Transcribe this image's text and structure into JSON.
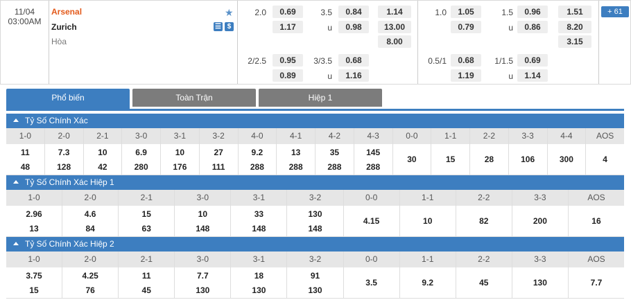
{
  "match": {
    "date": "11/04",
    "time": "03:00AM",
    "home": "Arsenal",
    "away": "Zurich",
    "draw": "Hòa",
    "more_count": "61",
    "odds": {
      "ft_ah_line1": "2.0",
      "ft_ah_h1": "0.69",
      "ft_ah_a1": "1.17",
      "ft_ou_line1": "3.5",
      "ft_ou_o1": "0.84",
      "ft_ou_u_label1": "u",
      "ft_ou_u1": "0.98",
      "ft_1x2_h": "1.14",
      "ft_1x2_a": "13.00",
      "ft_1x2_d": "8.00",
      "ft_ah_line2": "2/2.5",
      "ft_ah_h2": "0.95",
      "ft_ah_a2": "0.89",
      "ft_ou_line2": "3/3.5",
      "ft_ou_o2": "0.68",
      "ft_ou_u_label2": "u",
      "ft_ou_u2": "1.16",
      "h1_ah_line1": "1.0",
      "h1_ah_h1": "1.05",
      "h1_ah_a1": "0.79",
      "h1_ou_line1": "1.5",
      "h1_ou_o1": "0.96",
      "h1_ou_u_label1": "u",
      "h1_ou_u1": "0.86",
      "h1_1x2_h": "1.51",
      "h1_1x2_a": "8.20",
      "h1_1x2_d": "3.15",
      "h1_ah_line2": "0.5/1",
      "h1_ah_h2": "0.68",
      "h1_ah_a2": "1.19",
      "h1_ou_line2": "1/1.5",
      "h1_ou_o2": "0.69",
      "h1_ou_u_label2": "u",
      "h1_ou_u2": "1.14"
    }
  },
  "tabs": [
    "Phổ biến",
    "Toàn Trận",
    "Hiệp 1"
  ],
  "sections": [
    {
      "title": "Tỷ Số Chính Xác",
      "cols": [
        {
          "h": "1-0",
          "t": "11",
          "b": "48"
        },
        {
          "h": "2-0",
          "t": "7.3",
          "b": "128"
        },
        {
          "h": "2-1",
          "t": "10",
          "b": "42"
        },
        {
          "h": "3-0",
          "t": "6.9",
          "b": "280"
        },
        {
          "h": "3-1",
          "t": "10",
          "b": "176"
        },
        {
          "h": "3-2",
          "t": "27",
          "b": "111"
        },
        {
          "h": "4-0",
          "t": "9.2",
          "b": "288"
        },
        {
          "h": "4-1",
          "t": "13",
          "b": "288"
        },
        {
          "h": "4-2",
          "t": "35",
          "b": "288"
        },
        {
          "h": "4-3",
          "t": "145",
          "b": "288"
        },
        {
          "h": "0-0",
          "m": "30"
        },
        {
          "h": "1-1",
          "m": "15"
        },
        {
          "h": "2-2",
          "m": "28"
        },
        {
          "h": "3-3",
          "m": "106"
        },
        {
          "h": "4-4",
          "m": "300"
        },
        {
          "h": "AOS",
          "m": "4"
        }
      ]
    },
    {
      "title": "Tỷ Số Chính Xác Hiệp 1",
      "cols": [
        {
          "h": "1-0",
          "t": "2.96",
          "b": "13"
        },
        {
          "h": "2-0",
          "t": "4.6",
          "b": "84"
        },
        {
          "h": "2-1",
          "t": "15",
          "b": "63"
        },
        {
          "h": "3-0",
          "t": "10",
          "b": "148"
        },
        {
          "h": "3-1",
          "t": "33",
          "b": "148"
        },
        {
          "h": "3-2",
          "t": "130",
          "b": "148"
        },
        {
          "h": "0-0",
          "m": "4.15"
        },
        {
          "h": "1-1",
          "m": "10"
        },
        {
          "h": "2-2",
          "m": "82"
        },
        {
          "h": "3-3",
          "m": "200"
        },
        {
          "h": "AOS",
          "m": "16"
        }
      ]
    },
    {
      "title": "Tỷ Số Chính Xác Hiệp 2",
      "cols": [
        {
          "h": "1-0",
          "t": "3.75",
          "b": "15"
        },
        {
          "h": "2-0",
          "t": "4.25",
          "b": "76"
        },
        {
          "h": "2-1",
          "t": "11",
          "b": "45"
        },
        {
          "h": "3-0",
          "t": "7.7",
          "b": "130"
        },
        {
          "h": "3-1",
          "t": "18",
          "b": "130"
        },
        {
          "h": "3-2",
          "t": "91",
          "b": "130"
        },
        {
          "h": "0-0",
          "m": "3.5"
        },
        {
          "h": "1-1",
          "m": "9.2"
        },
        {
          "h": "2-2",
          "m": "45"
        },
        {
          "h": "3-3",
          "m": "130"
        },
        {
          "h": "AOS",
          "m": "7.7"
        }
      ]
    }
  ],
  "colors": {
    "accent": "#3d7ec0",
    "home_team": "#e35a1b",
    "tab_inactive": "#7c7c7c",
    "header_cell": "#e6e6e6",
    "odds_box": "#eeeeee"
  }
}
